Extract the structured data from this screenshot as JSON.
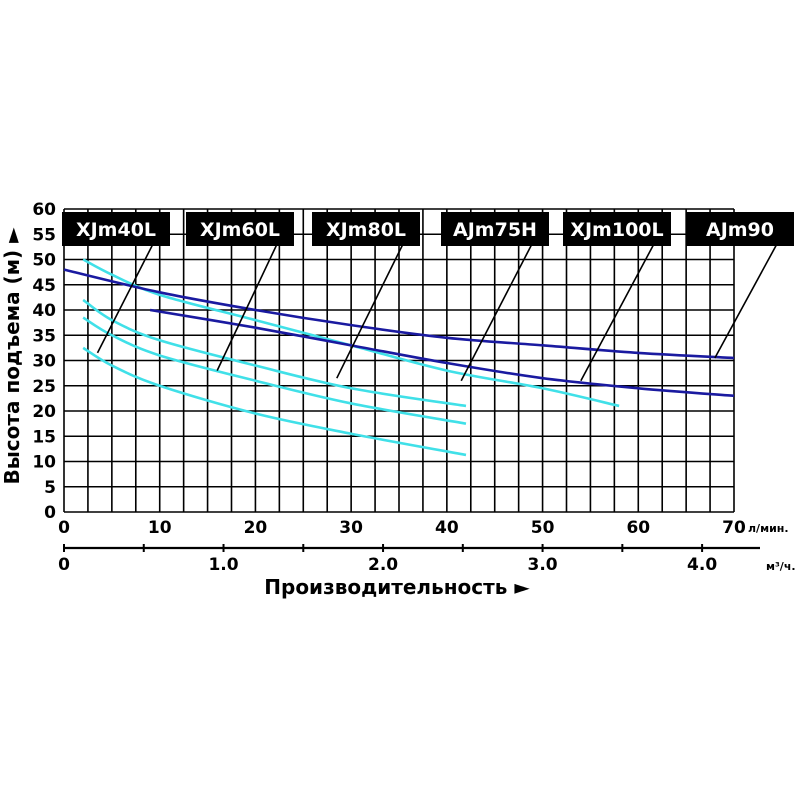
{
  "chart_data": {
    "type": "line",
    "ylabel": "Высота подъема (м) ►",
    "xlabel": "Производительность ►",
    "y_ticks": [
      "60",
      "55",
      "50",
      "45",
      "40",
      "35",
      "30",
      "25",
      "20",
      "15",
      "10",
      "5",
      "0"
    ],
    "x_ticks_lpm": [
      "0",
      "10",
      "20",
      "30",
      "40",
      "50",
      "60",
      "70"
    ],
    "x_unit_lpm": "л/мин.",
    "x_ticks_m3h": [
      "0",
      "1.0",
      "2.0",
      "3.0",
      "4.0"
    ],
    "x_unit_m3h": "м³/ч.",
    "xlim": [
      0,
      70
    ],
    "ylim": [
      0,
      60
    ],
    "grid": true,
    "series": [
      {
        "name": "XJm40L",
        "color": "#40e0e8",
        "x": [
          2,
          5,
          10,
          20,
          30,
          42
        ],
        "y": [
          32.5,
          29,
          25,
          19.5,
          15.5,
          11.3
        ],
        "label_target": [
          3.5,
          31.5
        ]
      },
      {
        "name": "XJm60L",
        "color": "#40e0e8",
        "x": [
          2,
          5,
          10,
          20,
          30,
          42
        ],
        "y": [
          38.5,
          35,
          31,
          26,
          21.5,
          17.5
        ],
        "label_target": [
          16,
          28
        ]
      },
      {
        "name": "XJm80L",
        "color": "#40e0e8",
        "x": [
          2,
          5,
          10,
          20,
          30,
          42
        ],
        "y": [
          42,
          38,
          34,
          29,
          24.5,
          21
        ],
        "label_target": [
          28.5,
          26.5
        ]
      },
      {
        "name": "AJm75H",
        "color": "#40e0e8",
        "x": [
          2,
          5,
          10,
          20,
          30,
          40,
          50,
          58
        ],
        "y": [
          50,
          47,
          43,
          38,
          33,
          28,
          24.5,
          21
        ],
        "label_target": [
          41.5,
          26
        ]
      },
      {
        "name": "XJm100L",
        "color": "#1a1aa0",
        "x": [
          9,
          20,
          30,
          40,
          50,
          60,
          70
        ],
        "y": [
          40,
          36.5,
          33,
          29.5,
          26.5,
          24.5,
          23
        ],
        "label_target": [
          54,
          26
        ]
      },
      {
        "name": "AJm90",
        "color": "#1a1aa0",
        "x": [
          0,
          10,
          20,
          30,
          40,
          50,
          60,
          70
        ],
        "y": [
          48,
          43.5,
          40,
          37,
          34.5,
          33,
          31.5,
          30.5
        ],
        "label_target": [
          68,
          30.5
        ]
      }
    ]
  }
}
